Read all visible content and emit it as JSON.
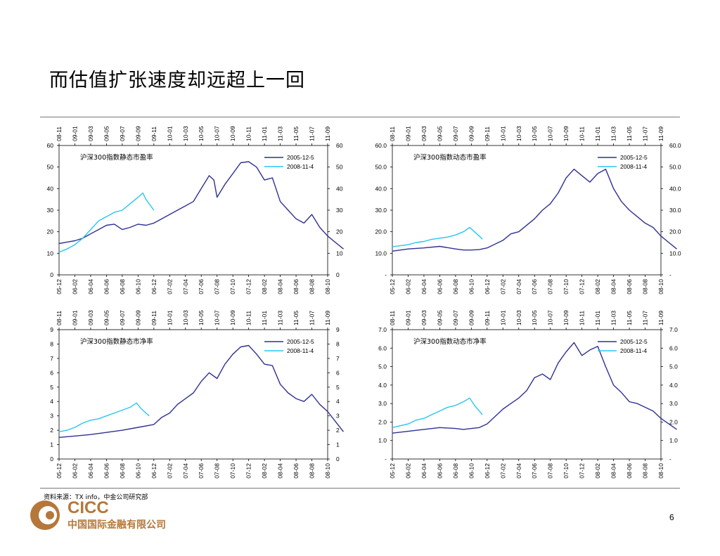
{
  "page": {
    "title": "而估值扩张速度却远超上一回",
    "source": "资料来源：TX info，中金公司研究部",
    "page_number": "6",
    "logo": {
      "brand": "CICC",
      "name_cn": "中国国际金融有限公司",
      "color": "#b5773a"
    }
  },
  "colors": {
    "series_2005": "#2e3192",
    "series_2008": "#29c5f0",
    "axis": "#000000",
    "rule": "#777777"
  },
  "chart_data": [
    {
      "type": "line",
      "title": "沪深300指数静态市盈率",
      "top_ticks": [
        "08-11",
        "09-01",
        "09-03",
        "09-05",
        "09-07",
        "09-09",
        "09-11",
        "10-01",
        "10-03",
        "10-05",
        "10-07",
        "10-09",
        "10-11",
        "11-01",
        "11-03",
        "11-05",
        "11-07",
        "11-09"
      ],
      "bottom_ticks": [
        "05-12",
        "06-02",
        "06-04",
        "06-06",
        "06-08",
        "06-10",
        "06-12",
        "07-02",
        "07-04",
        "07-06",
        "07-08",
        "07-10",
        "07-12",
        "08-02",
        "08-04",
        "08-06",
        "08-08",
        "08-10"
      ],
      "y_ticks": [
        "0",
        "10",
        "20",
        "30",
        "40",
        "50",
        "60"
      ],
      "ylim": [
        0,
        60
      ],
      "legend_position": "top-right",
      "series": [
        {
          "name": "2005-12-5",
          "color": "#2e3192",
          "points": [
            [
              0,
              14.5
            ],
            [
              0.5,
              15.2
            ],
            [
              1,
              15.8
            ],
            [
              1.5,
              17
            ],
            [
              2,
              19
            ],
            [
              2.5,
              21
            ],
            [
              3,
              23
            ],
            [
              3.5,
              23.5
            ],
            [
              4,
              21
            ],
            [
              4.5,
              22
            ],
            [
              5,
              23.5
            ],
            [
              5.5,
              23
            ],
            [
              6,
              24
            ],
            [
              6.5,
              26
            ],
            [
              7,
              28
            ],
            [
              7.5,
              30
            ],
            [
              8,
              32
            ],
            [
              8.5,
              34
            ],
            [
              9,
              40
            ],
            [
              9.5,
              46
            ],
            [
              9.8,
              44
            ],
            [
              10,
              36
            ],
            [
              10.5,
              42
            ],
            [
              11,
              47
            ],
            [
              11.5,
              52
            ],
            [
              12,
              52.5
            ],
            [
              12.5,
              50
            ],
            [
              13,
              44
            ],
            [
              13.5,
              45
            ],
            [
              14,
              34
            ],
            [
              14.5,
              30
            ],
            [
              15,
              26
            ],
            [
              15.5,
              24
            ],
            [
              16,
              28
            ],
            [
              16.5,
              22
            ],
            [
              17,
              18
            ],
            [
              17.5,
              15
            ],
            [
              18,
              12
            ]
          ]
        },
        {
          "name": "2008-11-4",
          "color": "#29c5f0",
          "points": [
            [
              0,
              10.5
            ],
            [
              0.5,
              12
            ],
            [
              1,
              14
            ],
            [
              1.5,
              17
            ],
            [
              2,
              21
            ],
            [
              2.5,
              25
            ],
            [
              3,
              27
            ],
            [
              3.5,
              29
            ],
            [
              4,
              30
            ],
            [
              4.5,
              33
            ],
            [
              5,
              36
            ],
            [
              5.3,
              38
            ],
            [
              5.5,
              35
            ],
            [
              5.8,
              32
            ],
            [
              6,
              30
            ]
          ]
        }
      ]
    },
    {
      "type": "line",
      "title": "沪深300指数动态市盈率",
      "top_ticks": [
        "08-11",
        "09-01",
        "09-03",
        "09-05",
        "09-07",
        "09-09",
        "09-11",
        "10-01",
        "10-03",
        "10-05",
        "10-07",
        "10-09",
        "10-11",
        "11-01",
        "11-03",
        "11-05",
        "11-07",
        "11-09"
      ],
      "bottom_ticks": [
        "05-12",
        "06-02",
        "06-04",
        "06-06",
        "06-08",
        "06-10",
        "06-12",
        "07-02",
        "07-04",
        "07-06",
        "07-08",
        "07-10",
        "07-12",
        "08-02",
        "08-04",
        "08-06",
        "08-08",
        "08-10"
      ],
      "y_ticks": [
        "-",
        "10.0",
        "20.0",
        "30.0",
        "40.0",
        "50.0",
        "60.0"
      ],
      "ylim": [
        0,
        60
      ],
      "legend_position": "top-right",
      "series": [
        {
          "name": "2005-12-5",
          "color": "#2e3192",
          "points": [
            [
              0,
              11
            ],
            [
              1,
              12
            ],
            [
              2,
              12.5
            ],
            [
              3,
              13.2
            ],
            [
              4,
              12
            ],
            [
              4.5,
              11.5
            ],
            [
              5,
              11.5
            ],
            [
              5.5,
              11.7
            ],
            [
              6,
              12.5
            ],
            [
              7,
              16
            ],
            [
              7.5,
              19
            ],
            [
              8,
              20
            ],
            [
              9,
              26
            ],
            [
              9.5,
              30
            ],
            [
              10,
              33
            ],
            [
              10.5,
              38
            ],
            [
              11,
              45
            ],
            [
              11.5,
              49
            ],
            [
              12,
              46
            ],
            [
              12.5,
              43
            ],
            [
              13,
              47
            ],
            [
              13.5,
              49
            ],
            [
              14,
              40
            ],
            [
              14.5,
              34
            ],
            [
              15,
              30
            ],
            [
              15.5,
              27
            ],
            [
              16,
              24
            ],
            [
              16.5,
              22
            ],
            [
              17,
              18
            ],
            [
              17.5,
              15
            ],
            [
              18,
              12
            ]
          ]
        },
        {
          "name": "2008-11-4",
          "color": "#29c5f0",
          "points": [
            [
              0,
              13
            ],
            [
              0.5,
              13.5
            ],
            [
              1,
              14
            ],
            [
              1.5,
              15
            ],
            [
              2,
              15.5
            ],
            [
              2.5,
              16.5
            ],
            [
              3,
              17
            ],
            [
              3.5,
              17.5
            ],
            [
              4,
              18.5
            ],
            [
              4.5,
              20
            ],
            [
              4.9,
              22
            ],
            [
              5.2,
              20
            ],
            [
              5.5,
              18
            ],
            [
              5.7,
              16.5
            ]
          ]
        }
      ]
    },
    {
      "type": "line",
      "title": "沪深300指数静态市净率",
      "top_ticks": [
        "08-11",
        "09-01",
        "09-03",
        "09-05",
        "09-07",
        "09-09",
        "09-11",
        "10-01",
        "10-03",
        "10-05",
        "10-07",
        "10-09",
        "10-11",
        "11-01",
        "11-03",
        "11-05",
        "11-07",
        "11-09"
      ],
      "bottom_ticks": [
        "05-12",
        "06-02",
        "06-04",
        "06-06",
        "06-08",
        "06-10",
        "06-12",
        "07-02",
        "07-04",
        "07-06",
        "07-08",
        "07-10",
        "07-12",
        "08-02",
        "08-04",
        "08-06",
        "08-08",
        "08-10"
      ],
      "y_ticks": [
        "0",
        "1",
        "2",
        "3",
        "4",
        "5",
        "6",
        "7",
        "8",
        "9"
      ],
      "ylim": [
        0,
        9
      ],
      "legend_position": "top-right",
      "series": [
        {
          "name": "2005-12-5",
          "color": "#2e3192",
          "points": [
            [
              0,
              1.5
            ],
            [
              1,
              1.6
            ],
            [
              2,
              1.7
            ],
            [
              3,
              1.85
            ],
            [
              4,
              2.0
            ],
            [
              5,
              2.2
            ],
            [
              6,
              2.4
            ],
            [
              6.5,
              2.9
            ],
            [
              7,
              3.2
            ],
            [
              7.5,
              3.8
            ],
            [
              8,
              4.2
            ],
            [
              8.5,
              4.6
            ],
            [
              9,
              5.4
            ],
            [
              9.5,
              6.0
            ],
            [
              10,
              5.6
            ],
            [
              10.5,
              6.6
            ],
            [
              11,
              7.3
            ],
            [
              11.5,
              7.8
            ],
            [
              12,
              7.9
            ],
            [
              12.5,
              7.3
            ],
            [
              13,
              6.6
            ],
            [
              13.5,
              6.5
            ],
            [
              14,
              5.2
            ],
            [
              14.5,
              4.6
            ],
            [
              15,
              4.2
            ],
            [
              15.5,
              4.0
            ],
            [
              16,
              4.5
            ],
            [
              16.5,
              3.8
            ],
            [
              17,
              3.3
            ],
            [
              17.5,
              2.6
            ],
            [
              18,
              1.9
            ]
          ]
        },
        {
          "name": "2008-11-4",
          "color": "#29c5f0",
          "points": [
            [
              0,
              1.9
            ],
            [
              0.5,
              2.0
            ],
            [
              1,
              2.2
            ],
            [
              1.5,
              2.5
            ],
            [
              2,
              2.7
            ],
            [
              2.5,
              2.8
            ],
            [
              3,
              3.0
            ],
            [
              3.5,
              3.2
            ],
            [
              4,
              3.4
            ],
            [
              4.5,
              3.6
            ],
            [
              4.9,
              3.9
            ],
            [
              5.2,
              3.5
            ],
            [
              5.5,
              3.2
            ],
            [
              5.7,
              3.0
            ]
          ]
        }
      ]
    },
    {
      "type": "line",
      "title": "沪深300指数动态市净率",
      "top_ticks": [
        "08-11",
        "09-01",
        "09-03",
        "09-05",
        "09-07",
        "09-09",
        "09-11",
        "10-01",
        "10-03",
        "10-05",
        "10-07",
        "10-09",
        "10-11",
        "11-01",
        "11-03",
        "11-05",
        "11-07",
        "11-09"
      ],
      "bottom_ticks": [
        "05-12",
        "06-02",
        "06-04",
        "06-06",
        "06-08",
        "06-10",
        "06-12",
        "07-02",
        "07-04",
        "07-06",
        "07-08",
        "07-10",
        "07-12",
        "08-02",
        "08-04",
        "08-06",
        "08-08",
        "08-10"
      ],
      "y_ticks": [
        "-",
        "1.0",
        "2.0",
        "3.0",
        "4.0",
        "5.0",
        "6.0",
        "7.0"
      ],
      "ylim": [
        0,
        7
      ],
      "legend_position": "top-right",
      "series": [
        {
          "name": "2005-12-5",
          "color": "#2e3192",
          "points": [
            [
              0,
              1.4
            ],
            [
              1,
              1.5
            ],
            [
              2,
              1.6
            ],
            [
              3,
              1.7
            ],
            [
              4,
              1.65
            ],
            [
              4.5,
              1.6
            ],
            [
              5,
              1.65
            ],
            [
              5.5,
              1.7
            ],
            [
              6,
              1.9
            ],
            [
              6.5,
              2.3
            ],
            [
              7,
              2.7
            ],
            [
              7.5,
              3.0
            ],
            [
              8,
              3.3
            ],
            [
              8.5,
              3.7
            ],
            [
              9,
              4.4
            ],
            [
              9.5,
              4.6
            ],
            [
              10,
              4.3
            ],
            [
              10.5,
              5.2
            ],
            [
              11,
              5.8
            ],
            [
              11.5,
              6.3
            ],
            [
              12,
              5.6
            ],
            [
              12.5,
              5.9
            ],
            [
              13,
              6.1
            ],
            [
              13.5,
              5.0
            ],
            [
              14,
              4.0
            ],
            [
              14.5,
              3.6
            ],
            [
              15,
              3.1
            ],
            [
              15.5,
              3.0
            ],
            [
              16,
              2.8
            ],
            [
              16.5,
              2.6
            ],
            [
              17,
              2.2
            ],
            [
              17.5,
              1.9
            ],
            [
              18,
              1.6
            ]
          ]
        },
        {
          "name": "2008-11-4",
          "color": "#29c5f0",
          "points": [
            [
              0,
              1.7
            ],
            [
              0.5,
              1.8
            ],
            [
              1,
              1.9
            ],
            [
              1.5,
              2.1
            ],
            [
              2,
              2.2
            ],
            [
              2.5,
              2.4
            ],
            [
              3,
              2.6
            ],
            [
              3.5,
              2.8
            ],
            [
              4,
              2.9
            ],
            [
              4.5,
              3.1
            ],
            [
              4.9,
              3.3
            ],
            [
              5.2,
              2.9
            ],
            [
              5.5,
              2.6
            ],
            [
              5.7,
              2.4
            ]
          ]
        }
      ]
    }
  ]
}
